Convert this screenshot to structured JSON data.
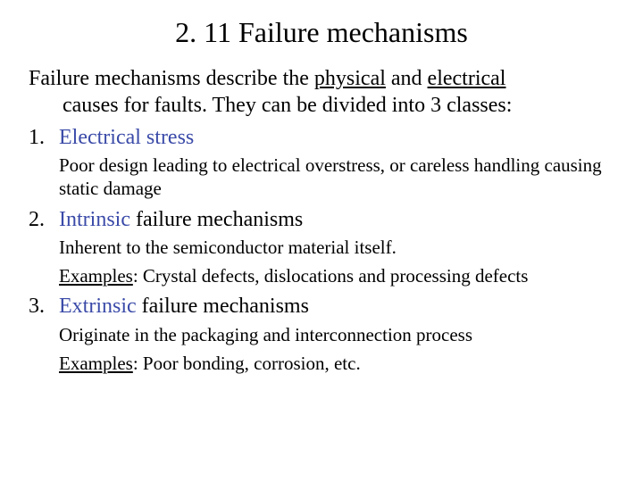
{
  "title": "2. 11 Failure mechanisms",
  "intro": {
    "line1_a": "Failure mechanisms describe the ",
    "line1_b": "physical",
    "line1_c": " and ",
    "line1_d": "electrical",
    "line2": "causes for faults. They can be divided into 3 classes:"
  },
  "item1": {
    "num": "1.",
    "label_prefix": "",
    "label_blue": "Electrical stress",
    "label_suffix": "",
    "sub1": "Poor design leading to electrical overstress, or careless handling causing static damage"
  },
  "item2": {
    "num": "2.",
    "label_blue": "Intrinsic",
    "label_suffix": " failure mechanisms",
    "sub1": "Inherent to the semiconductor material itself.",
    "sub2_u": "Examples",
    "sub2_rest": ": Crystal defects, dislocations and processing defects"
  },
  "item3": {
    "num": "3.",
    "label_blue": "Extrinsic",
    "label_suffix": " failure mechanisms",
    "sub1": "Originate in the packaging and interconnection process",
    "sub2_u": "Examples",
    "sub2_rest": ": Poor bonding, corrosion, etc."
  }
}
